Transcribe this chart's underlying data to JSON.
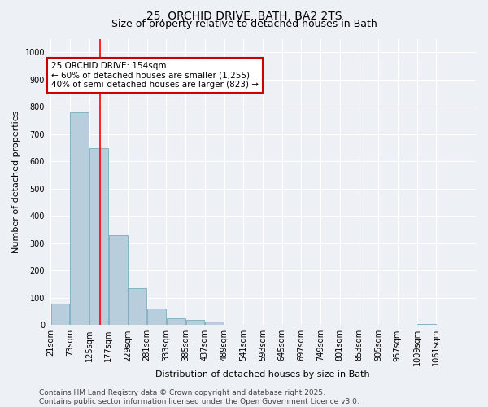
{
  "title_line1": "25, ORCHID DRIVE, BATH, BA2 2TS",
  "title_line2": "Size of property relative to detached houses in Bath",
  "xlabel": "Distribution of detached houses by size in Bath",
  "ylabel": "Number of detached properties",
  "bin_labels": [
    "21sqm",
    "73sqm",
    "125sqm",
    "177sqm",
    "229sqm",
    "281sqm",
    "333sqm",
    "385sqm",
    "437sqm",
    "489sqm",
    "541sqm",
    "593sqm",
    "645sqm",
    "697sqm",
    "749sqm",
    "801sqm",
    "853sqm",
    "905sqm",
    "957sqm",
    "1009sqm",
    "1061sqm"
  ],
  "bin_edges": [
    21,
    73,
    125,
    177,
    229,
    281,
    333,
    385,
    437,
    489,
    541,
    593,
    645,
    697,
    749,
    801,
    853,
    905,
    957,
    1009,
    1061,
    1113
  ],
  "bar_heights": [
    80,
    780,
    650,
    330,
    135,
    60,
    25,
    20,
    12,
    0,
    0,
    0,
    0,
    0,
    0,
    0,
    0,
    0,
    0,
    5,
    0
  ],
  "bar_color": "#b8cedd",
  "bar_edge_color": "#7aaabf",
  "ylim": [
    0,
    1050
  ],
  "yticks": [
    0,
    100,
    200,
    300,
    400,
    500,
    600,
    700,
    800,
    900,
    1000
  ],
  "red_line_x": 154,
  "annotation_text_line1": "25 ORCHID DRIVE: 154sqm",
  "annotation_text_line2": "← 60% of detached houses are smaller (1,255)",
  "annotation_text_line3": "40% of semi-detached houses are larger (823) →",
  "annotation_box_color": "#ffffff",
  "annotation_box_edge": "#cc0000",
  "footnote_line1": "Contains HM Land Registry data © Crown copyright and database right 2025.",
  "footnote_line2": "Contains public sector information licensed under the Open Government Licence v3.0.",
  "background_color": "#edf1f5",
  "plot_bg_color": "#edf1f5",
  "grid_color": "#ffffff",
  "title_fontsize": 10,
  "subtitle_fontsize": 9,
  "axis_label_fontsize": 8,
  "tick_fontsize": 7,
  "annotation_fontsize": 7.5,
  "footnote_fontsize": 6.5
}
